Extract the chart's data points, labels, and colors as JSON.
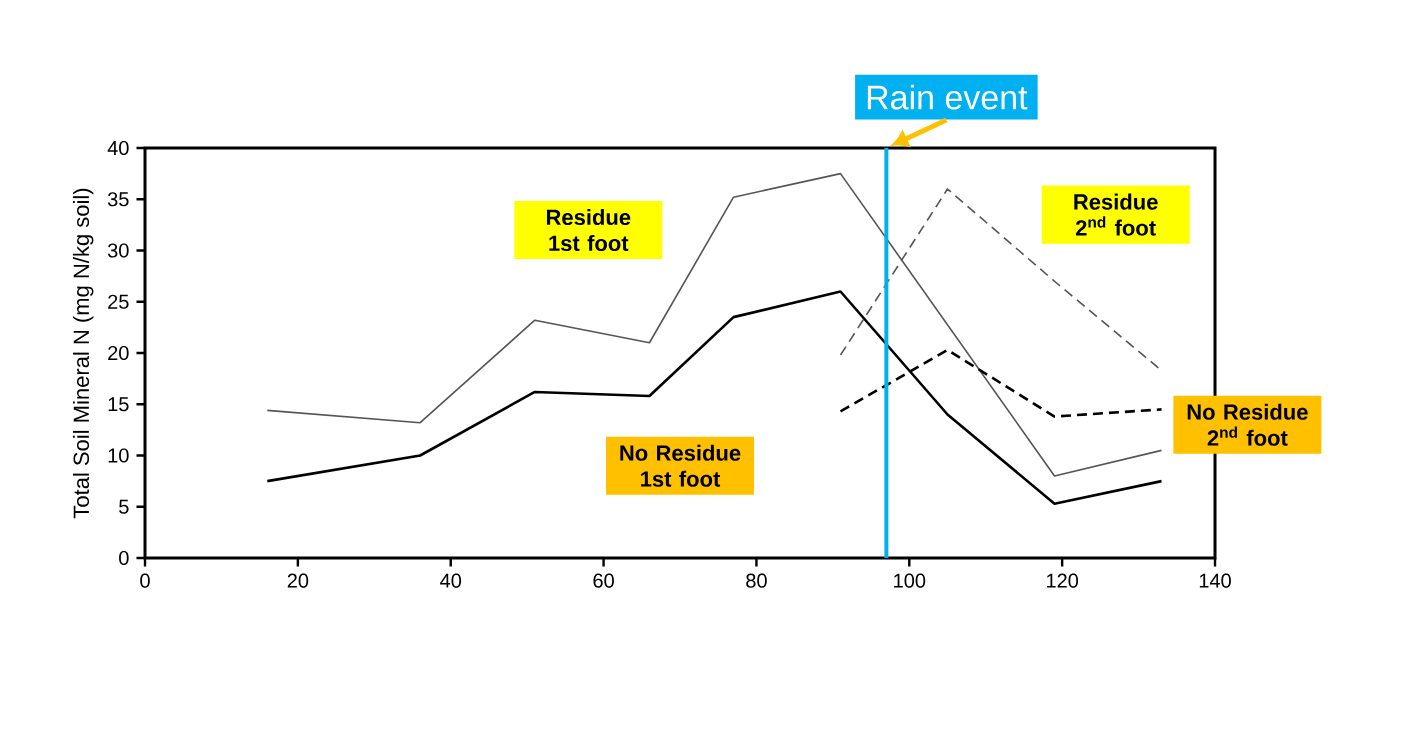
{
  "chart_data": {
    "type": "line",
    "ylabel": "Total Soil Mineral N (mg N/kg soil)",
    "xlim": [
      0,
      140
    ],
    "xticks": [
      0,
      20,
      40,
      60,
      80,
      100,
      120,
      140
    ],
    "ylim": [
      0,
      40
    ],
    "yticks": [
      0,
      5,
      10,
      15,
      20,
      25,
      30,
      35,
      40
    ],
    "grid": false,
    "series": [
      {
        "name": "Residue 1st foot",
        "color": "#555555",
        "line_style": "solid",
        "x": [
          16,
          36,
          51,
          66,
          77,
          91,
          119,
          133
        ],
        "values": [
          14.4,
          13.2,
          23.2,
          21,
          35.2,
          37.5,
          8,
          10.5
        ]
      },
      {
        "name": "No Residue 1st foot",
        "color": "#000000",
        "line_style": "solid",
        "x": [
          16,
          36,
          51,
          66,
          77,
          91,
          105,
          119,
          133
        ],
        "values": [
          7.5,
          10,
          16.2,
          15.8,
          23.5,
          26,
          14,
          5.3,
          7.5
        ]
      },
      {
        "name": "Residue 2$^{nd}$ foot",
        "color": "#555555",
        "line_style": "dashed",
        "x": [
          91,
          105,
          119,
          133
        ],
        "values": [
          19.8,
          36,
          27,
          18.3
        ]
      },
      {
        "name": "No Residue 2$^{nd}$ foot",
        "color": "#000000",
        "line_style": "dashed",
        "x": [
          91,
          105,
          119,
          133
        ],
        "values": [
          14.3,
          20.3,
          13.8,
          14.5
        ]
      }
    ],
    "ref_lines": [
      {
        "axis": "x",
        "value": 97,
        "label": "Rain event",
        "color": "#00b0f0"
      }
    ]
  }
}
